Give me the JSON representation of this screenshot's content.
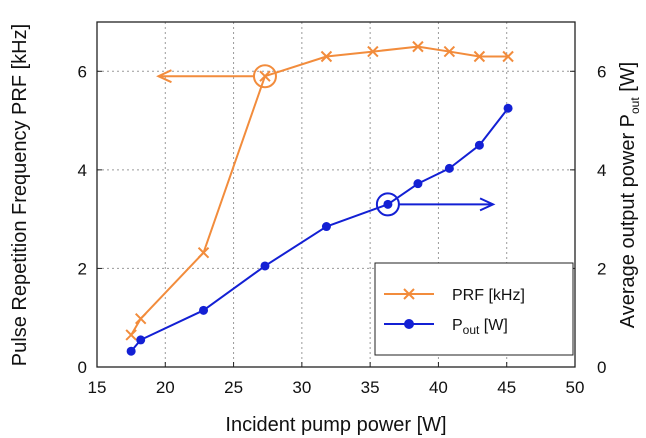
{
  "chart_data": {
    "type": "line",
    "xlabel": "Incident pump power [W]",
    "ylabel_left": "Pulse Repetition Frequency PRF [kHz]",
    "ylabel_right": {
      "main": "Average output power P",
      "sub": "out",
      "unit": " [W]"
    },
    "xlim": [
      15,
      50
    ],
    "ylim_left": [
      0,
      7
    ],
    "ylim_right": [
      0,
      7
    ],
    "xticks": [
      "15",
      "20",
      "25",
      "30",
      "35",
      "40",
      "45",
      "50"
    ],
    "yticks_left": [
      "0",
      "2",
      "4",
      "6"
    ],
    "yticks_right": [
      "0",
      "2",
      "4",
      "6"
    ],
    "grid": true,
    "legend_position": "bottom-right",
    "series": [
      {
        "name": "PRF [kHz]",
        "axis": "left",
        "color": "#f28c3c",
        "marker": "x",
        "x": [
          17.5,
          18.2,
          22.8,
          27.3,
          31.8,
          35.2,
          38.5,
          40.8,
          43.0,
          45.1
        ],
        "y": [
          0.65,
          0.98,
          2.32,
          5.9,
          6.3,
          6.4,
          6.5,
          6.4,
          6.3,
          6.3
        ]
      },
      {
        "name": "P",
        "name_sub": "out",
        "name_suffix": " [W]",
        "axis": "right",
        "color": "#1320d4",
        "marker": "circle",
        "x": [
          17.5,
          18.2,
          22.8,
          27.3,
          31.8,
          36.3,
          38.5,
          40.8,
          43.0,
          45.1
        ],
        "y": [
          0.32,
          0.55,
          1.15,
          2.05,
          2.85,
          3.3,
          3.72,
          4.03,
          4.5,
          5.25
        ]
      }
    ],
    "annotations": [
      {
        "series": "PRF [kHz]",
        "x": 27.3,
        "y": 5.9,
        "axis": "left",
        "arrow": "left",
        "arrow_to_x": 19.5
      },
      {
        "series": "P",
        "x": 36.3,
        "y": 3.3,
        "axis": "right",
        "arrow": "right",
        "arrow_to_x": 44
      }
    ]
  }
}
